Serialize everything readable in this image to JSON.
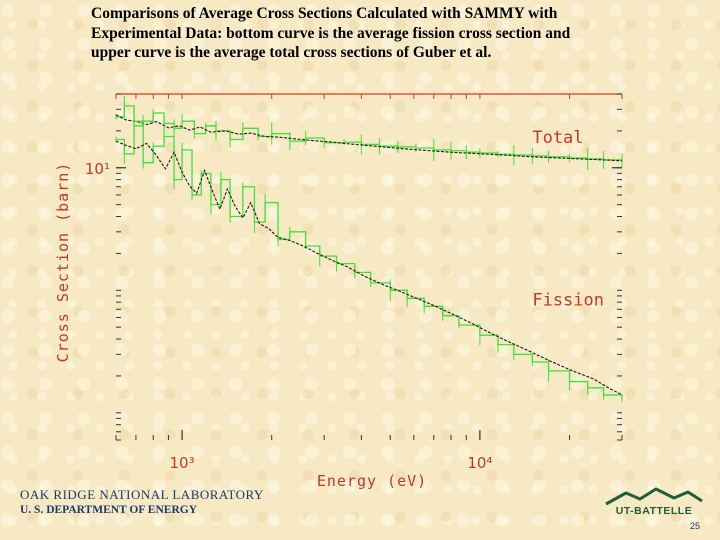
{
  "slide": {
    "title": "Comparisons of Average Cross Sections Calculated with SAMMY with Experimental Data: bottom curve is the average fission cross section and upper curve is the average total cross sections of Guber et al.",
    "footer_org": "OAK RIDGE NATIONAL LABORATORY",
    "footer_dept": "U. S. DEPARTMENT OF ENERGY",
    "logo_text": "UT-BATTELLE",
    "page_number": "25"
  },
  "colors": {
    "experimental": "#3ee03a",
    "calculated": "#1b1b1b",
    "frame": "#d23a2a",
    "axis_text": "#c0392b"
  },
  "chart_data": {
    "type": "line",
    "title": "",
    "xlabel": "Energy (eV)",
    "ylabel": "Cross Section (barn)",
    "xscale": "log",
    "yscale": "log",
    "xlim": [
      600,
      30000
    ],
    "ylim": [
      0.06,
      40
    ],
    "x_ticks": [
      {
        "value": 1000,
        "label": "10³"
      },
      {
        "value": 10000,
        "label": "10⁴"
      }
    ],
    "y_ticks": [
      {
        "value": 10,
        "label": "10¹"
      }
    ],
    "grid": false,
    "series_labels": [
      {
        "text": "Total",
        "x": 15000,
        "y": 16
      },
      {
        "text": "Fission",
        "x": 15000,
        "y": 0.75
      }
    ],
    "series": [
      {
        "name": "Total",
        "curves": [
          {
            "kind": "experimental",
            "x": [
              600,
              640,
              690,
              740,
              800,
              870,
              940,
              1000,
              1100,
              1200,
              1300,
              1450,
              1600,
              1800,
              2000,
              2300,
              2600,
              3000,
              3500,
              4000,
              4600,
              5300,
              6100,
              7000,
              8000,
              9000,
              10000,
              11500,
              13000,
              15000,
              17000,
              20000,
              23000,
              26000,
              30000
            ],
            "y": [
              26,
              32,
              22,
              24,
              28,
              23,
              21,
              24,
              19,
              22,
              20,
              17,
              21,
              18,
              19,
              16.5,
              17.5,
              16,
              16.2,
              15.5,
              15,
              14.8,
              14.5,
              14,
              13.8,
              13.4,
              13.2,
              12.9,
              12.7,
              12.5,
              12.3,
              12,
              11.8,
              11.6,
              11.4
            ]
          },
          {
            "kind": "calculated",
            "x": [
              600,
              650,
              700,
              760,
              820,
              900,
              980,
              1060,
              1150,
              1250,
              1400,
              1550,
              1700,
              1900,
              2100,
              2400,
              2800,
              3200,
              3700,
              4300,
              5000,
              6000,
              7000,
              8000,
              9000,
              10000,
              12000,
              14000,
              16000,
              19000,
              22000,
              26000,
              30000
            ],
            "y": [
              27,
              24.5,
              24,
              22.5,
              23.8,
              21.2,
              22,
              20.3,
              21.5,
              19.5,
              20,
              18.8,
              19.2,
              18,
              17.8,
              17.2,
              16.6,
              16.2,
              15.6,
              15.1,
              14.6,
              14.1,
              13.7,
              13.4,
              13.2,
              13,
              12.7,
              12.4,
              12.2,
              12,
              11.8,
              11.6,
              11.4
            ]
          }
        ]
      },
      {
        "name": "Fission",
        "curves": [
          {
            "kind": "experimental",
            "x": [
              600,
              640,
              690,
              740,
              800,
              870,
              940,
              1000,
              1080,
              1160,
              1250,
              1350,
              1450,
              1600,
              1750,
              1900,
              2100,
              2300,
              2600,
              2900,
              3300,
              3800,
              4300,
              5000,
              5700,
              6500,
              7500,
              8500,
              10000,
              11500,
              13000,
              15000,
              17000,
              20000,
              23000,
              26000,
              30000
            ],
            "y": [
              17,
              13,
              24,
              11,
              15,
              18,
              8,
              14,
              6,
              9,
              5,
              8,
              4,
              7,
              3.6,
              5.2,
              2.6,
              3,
              2.3,
              1.9,
              1.65,
              1.4,
              1.15,
              1,
              0.86,
              0.74,
              0.62,
              0.52,
              0.43,
              0.36,
              0.3,
              0.26,
              0.22,
              0.18,
              0.16,
              0.14,
              0.13
            ]
          },
          {
            "kind": "calculated",
            "x": [
              600,
              650,
              700,
              760,
              820,
              880,
              940,
              1000,
              1060,
              1120,
              1190,
              1260,
              1340,
              1420,
              1510,
              1600,
              1700,
              1820,
              1950,
              2100,
              2300,
              2550,
              2850,
              3200,
              3600,
              4100,
              4700,
              5400,
              6200,
              7100,
              8200,
              9500,
              11000,
              12800,
              15000,
              17500,
              20500,
              24000,
              27000,
              30000
            ],
            "y": [
              16.5,
              15.2,
              14.3,
              15.8,
              12.6,
              9.8,
              13.4,
              9.2,
              7.1,
              6.2,
              9.5,
              6.6,
              4.6,
              6.7,
              4.8,
              3.9,
              5.2,
              3.5,
              3.2,
              2.7,
              2.55,
              2.3,
              2,
              1.75,
              1.55,
              1.3,
              1.12,
              0.98,
              0.85,
              0.74,
              0.63,
              0.53,
              0.44,
              0.37,
              0.31,
              0.26,
              0.22,
              0.19,
              0.16,
              0.14
            ]
          }
        ]
      }
    ]
  }
}
